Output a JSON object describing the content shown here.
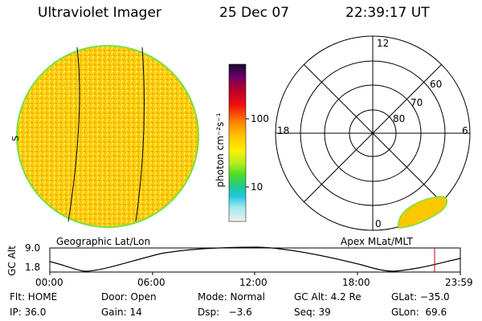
{
  "header": {
    "instrument": "Ultraviolet Imager",
    "date": "25 Dec 07",
    "time": "22:39:17 UT"
  },
  "colorbar": {
    "label": "photon cm⁻²s⁻¹",
    "ticks": [
      "100",
      "10"
    ]
  },
  "polar_plot": {
    "mlt_labels": {
      "top": "12",
      "left": "18",
      "right": "6",
      "bottom": "0"
    },
    "lat_labels": [
      "60",
      "70",
      "80"
    ]
  },
  "disk": {
    "side_label": "S"
  },
  "panels": {
    "left_caption": "Geographic Lat/Lon",
    "right_caption": "Apex MLat/MLT"
  },
  "orbit": {
    "ylabel": "GC Alt",
    "y_ticks": [
      "9.0",
      "1.8"
    ],
    "x_ticks": [
      "00:00",
      "06:00",
      "12:00",
      "18:00",
      "23:59"
    ]
  },
  "status": {
    "row1": [
      "Flt: HOME",
      "Door: Open",
      "Mode: Normal",
      "GC Alt: 4.2 Re",
      "GLat: −35.0"
    ],
    "row2": [
      "IP: 36.0",
      "Gain: 14",
      "Dsp:   −3.6",
      "Seq: 39",
      "GLon:  69.6"
    ]
  },
  "colors": {
    "disk_fill": "#fac800",
    "disk_edge": "#78e040",
    "orbit_marker": "#cc0000"
  }
}
